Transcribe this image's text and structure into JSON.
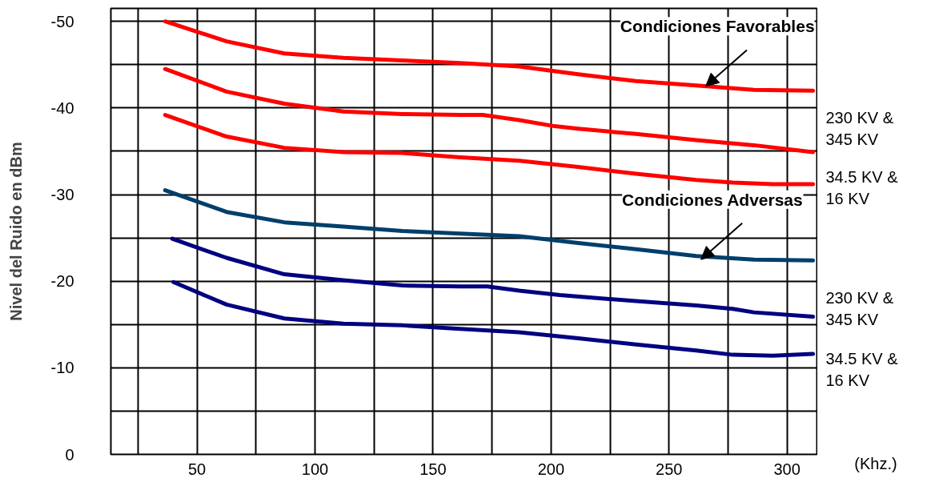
{
  "chart_data": {
    "type": "line",
    "ylabel": "Nivel del Ruido en dBm",
    "xlabel": "(Khz.)",
    "xlim": [
      13.5,
      313
    ],
    "ylim": [
      0,
      -51.5
    ],
    "xticks": [
      {
        "value": 25,
        "label": null
      },
      50,
      {
        "value": 75,
        "label": null
      },
      100,
      {
        "value": 125,
        "label": null
      },
      150,
      {
        "value": 175,
        "label": null
      },
      200,
      {
        "value": 225,
        "label": null
      },
      250,
      {
        "value": 275,
        "label": null
      },
      300
    ],
    "yticks": [
      0,
      {
        "value": -5,
        "label": null
      },
      -10,
      {
        "value": -15,
        "label": null
      },
      -20,
      {
        "value": -25,
        "label": null
      },
      -30,
      {
        "value": -35,
        "label": null
      },
      -40,
      {
        "value": -45,
        "label": null
      },
      -50
    ],
    "grid": true,
    "line_style": "solid",
    "series": [
      {
        "color": "#ff0000",
        "x": [
          36.5,
          62.5,
          87,
          112,
          137,
          161.5,
          186.5,
          211.5,
          236,
          261.5,
          286,
          311
        ],
        "values": [
          -50,
          -47.7,
          -46.3,
          -45.8,
          -45.5,
          -45.2,
          -44.8,
          -43.9,
          -43.1,
          -42.6,
          -42.1,
          -42.0
        ]
      },
      {
        "color": "#ff0000",
        "x": [
          36.5,
          62.5,
          87,
          112,
          137,
          161.5,
          171,
          186.5,
          201.5,
          211.5,
          236,
          261.5,
          286,
          311
        ],
        "values": [
          -44.5,
          -41.9,
          -40.5,
          -39.6,
          -39.3,
          -39.2,
          -39.2,
          -38.6,
          -37.9,
          -37.6,
          -37.0,
          -36.3,
          -35.7,
          -34.9
        ]
      },
      {
        "color": "#ff0000",
        "x": [
          36.5,
          62.5,
          87,
          112,
          137,
          161.5,
          186.5,
          211.5,
          236,
          261.5,
          277,
          294,
          311
        ],
        "values": [
          -39.2,
          -36.7,
          -35.4,
          -34.9,
          -34.8,
          -34.3,
          -33.9,
          -33.2,
          -32.4,
          -31.7,
          -31.4,
          -31.2,
          -31.2
        ]
      },
      {
        "color": "#003f6b",
        "x": [
          36.5,
          62.5,
          87,
          112,
          137,
          161.5,
          186.5,
          211.5,
          236,
          261.5,
          286,
          311
        ],
        "values": [
          -30.5,
          -28.0,
          -26.8,
          -26.3,
          -25.8,
          -25.5,
          -25.2,
          -24.4,
          -23.7,
          -22.9,
          -22.5,
          -22.4
        ]
      },
      {
        "color": "#000080",
        "x": [
          39.5,
          62.5,
          87,
          112,
          137,
          161.5,
          173,
          186.5,
          203.7,
          236,
          261.5,
          277,
          286,
          311
        ],
        "values": [
          -24.9,
          -22.7,
          -20.8,
          -20.1,
          -19.5,
          -19.4,
          -19.4,
          -18.9,
          -18.4,
          -17.7,
          -17.2,
          -16.8,
          -16.4,
          -15.9
        ]
      },
      {
        "color": "#000080",
        "x": [
          40,
          62.5,
          87,
          112,
          137,
          161.5,
          186.5,
          211.5,
          236,
          261.5,
          277,
          294,
          311
        ],
        "values": [
          -19.9,
          -17.3,
          -15.7,
          -15.1,
          -14.9,
          -14.5,
          -14.1,
          -13.4,
          -12.7,
          -12.0,
          -11.5,
          -11.4,
          -11.6
        ]
      }
    ],
    "annotations": [
      {
        "text": "Condiciones Favorables",
        "x": 265.5,
        "y": -42.5
      },
      {
        "text": "Condiciones Adversas",
        "x": 263.5,
        "y": -22.5
      },
      "230 KV &\n345 KV",
      "34.5 KV &\n16 KV",
      "230 KV &\n345 KV",
      "34.5 KV &\n16 KV"
    ]
  }
}
